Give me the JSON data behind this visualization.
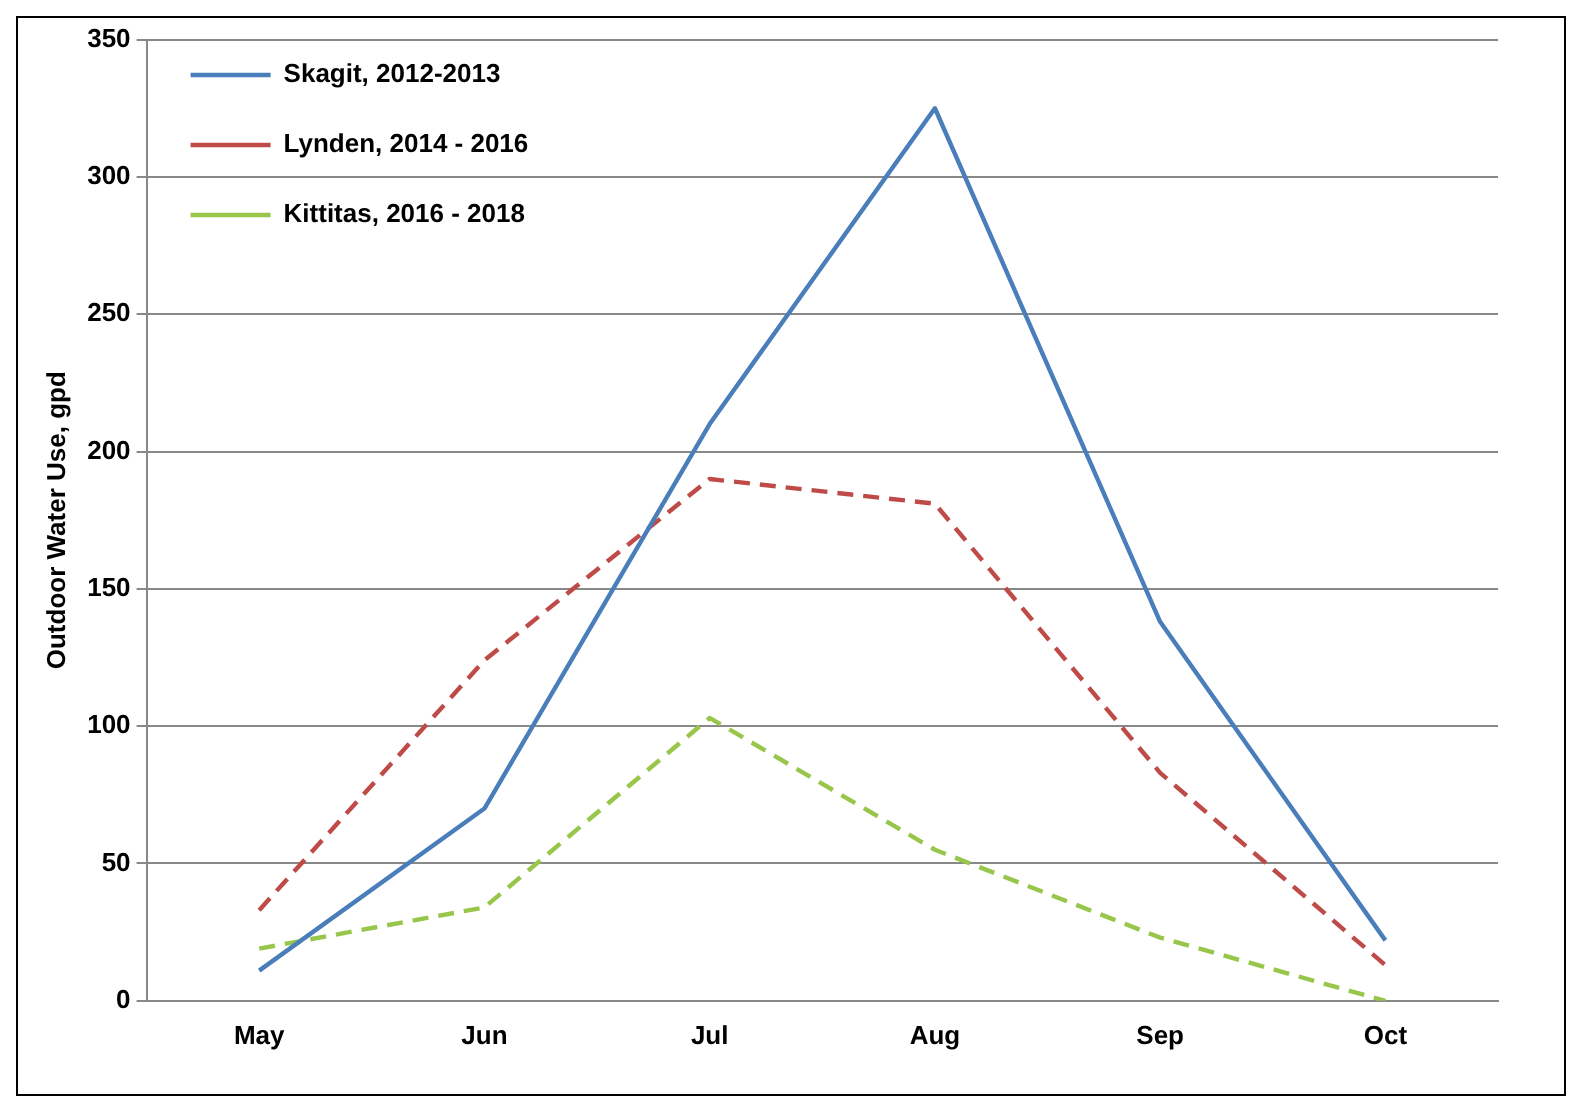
{
  "chart_data": {
    "type": "line",
    "ylabel": "Outdoor Water Use, gpd",
    "categories": [
      "May",
      "Jun",
      "Jul",
      "Aug",
      "Sep",
      "Oct"
    ],
    "series": [
      {
        "name": "Skagit, 2012-2013",
        "color": "#4a7ebb",
        "values": [
          11,
          70,
          210,
          325,
          138,
          22
        ],
        "line_style": "solid"
      },
      {
        "name": "Lynden, 2014 - 2016",
        "color": "#be4b48",
        "values": [
          33,
          124,
          190,
          181,
          83,
          13
        ],
        "line_style": "dashed"
      },
      {
        "name": "Kittitas, 2016 - 2018",
        "color": "#98c64a",
        "values": [
          19,
          34,
          103,
          55,
          23,
          0
        ],
        "line_style": "dashed"
      }
    ],
    "ylim": [
      0,
      350
    ],
    "yticks": [
      0,
      50,
      100,
      150,
      200,
      250,
      300,
      350
    ],
    "grid": "y",
    "legend": "top left",
    "marker": "none"
  }
}
